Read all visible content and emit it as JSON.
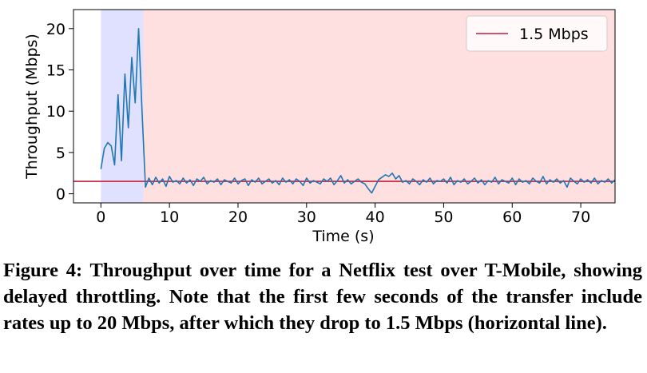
{
  "chart_data": {
    "type": "line",
    "xlabel": "Time (s)",
    "ylabel": "Throughput (Mbps)",
    "xlim": [
      -4,
      75
    ],
    "ylim": [
      -1.1,
      22.3
    ],
    "xticks": [
      0,
      10,
      20,
      30,
      40,
      50,
      60,
      70
    ],
    "yticks": [
      0,
      5,
      10,
      15,
      20
    ],
    "grid": false,
    "legend": "upper right",
    "shaded_regions": [
      {
        "xlim": [
          0,
          6.2
        ],
        "color": "#e0e0ff"
      },
      {
        "xlim": [
          6.2,
          75
        ],
        "color": "#ffe0e0"
      }
    ],
    "hlines": [
      {
        "name": "1.5 Mbps",
        "value": 1.5,
        "color": "#c41e3a"
      }
    ],
    "x": [
      0,
      0.5,
      1,
      1.5,
      2,
      2.5,
      3,
      3.5,
      4,
      4.5,
      5,
      5.5,
      6,
      6.5,
      7,
      7.5,
      8,
      8.5,
      9,
      9.5,
      10,
      10.5,
      11,
      11.5,
      12,
      12.5,
      13,
      13.5,
      14,
      14.5,
      15,
      15.5,
      16,
      16.5,
      17,
      17.5,
      18,
      18.5,
      19,
      19.5,
      20,
      20.5,
      21,
      21.5,
      22,
      22.5,
      23,
      23.5,
      24,
      24.5,
      25,
      25.5,
      26,
      26.5,
      27,
      27.5,
      28,
      28.5,
      29,
      29.5,
      30,
      30.5,
      31,
      31.5,
      32,
      32.5,
      33,
      33.5,
      34,
      34.5,
      35,
      35.5,
      36,
      36.5,
      37,
      37.5,
      38,
      38.5,
      39,
      39.5,
      40,
      40.5,
      41,
      41.5,
      42,
      42.5,
      43,
      43.5,
      44,
      44.5,
      45,
      45.5,
      46,
      46.5,
      47,
      47.5,
      48,
      48.5,
      49,
      49.5,
      50,
      50.5,
      51,
      51.5,
      52,
      52.5,
      53,
      53.5,
      54,
      54.5,
      55,
      55.5,
      56,
      56.5,
      57,
      57.5,
      58,
      58.5,
      59,
      59.5,
      60,
      60.5,
      61,
      61.5,
      62,
      62.5,
      63,
      63.5,
      64,
      64.5,
      65,
      65.5,
      66,
      66.5,
      67,
      67.5,
      68,
      68.5,
      69,
      69.5,
      70,
      70.5,
      71,
      71.5,
      72,
      72.5,
      73,
      73.5,
      74,
      74.5,
      75
    ],
    "series": [
      {
        "name": "Throughput",
        "color": "#1f77b4",
        "values": [
          3,
          5.5,
          6.2,
          5.8,
          3.5,
          12,
          4,
          14.5,
          8,
          16.5,
          11,
          20,
          10,
          0.8,
          1.9,
          1.1,
          2.0,
          1.3,
          1.8,
          0.9,
          2.1,
          1.4,
          1.6,
          1.2,
          1.9,
          1.3,
          1.7,
          1.0,
          1.8,
          1.5,
          2.0,
          1.2,
          1.6,
          1.4,
          1.8,
          1.1,
          1.7,
          1.5,
          1.3,
          1.9,
          1.2,
          1.6,
          1.8,
          1.0,
          1.7,
          1.4,
          1.9,
          1.2,
          1.5,
          1.8,
          1.3,
          1.6,
          1.1,
          1.9,
          1.4,
          1.7,
          1.2,
          1.8,
          1.5,
          1.0,
          1.9,
          1.3,
          1.6,
          1.4,
          1.2,
          1.8,
          1.5,
          1.9,
          1.1,
          1.6,
          2.2,
          1.3,
          1.7,
          1.2,
          1.5,
          1.8,
          1.4,
          1.2,
          0.6,
          0.1,
          0.9,
          1.7,
          2.0,
          2.3,
          2.1,
          2.5,
          1.8,
          2.2,
          1.4,
          1.6,
          1.2,
          1.8,
          1.5,
          1.1,
          1.7,
          1.4,
          1.9,
          1.2,
          1.6,
          1.5,
          1.8,
          1.3,
          2.0,
          1.1,
          1.6,
          1.4,
          1.8,
          1.2,
          1.5,
          1.9,
          1.3,
          1.7,
          1.1,
          1.6,
          1.4,
          2.0,
          1.2,
          1.7,
          1.5,
          1.3,
          1.9,
          1.1,
          1.8,
          1.4,
          1.6,
          1.2,
          1.9,
          1.5,
          1.3,
          2.1,
          1.2,
          1.7,
          1.4,
          1.8,
          1.3,
          1.6,
          0.8,
          1.9,
          1.5,
          1.2,
          1.8,
          1.4,
          1.7,
          1.3,
          1.9,
          1.2,
          1.6,
          1.4,
          1.8,
          1.3,
          1.7
        ]
      }
    ]
  },
  "caption": "Figure 4: Throughput over time for a Netflix test over T-Mobile, showing delayed throttling. Note that the first few seconds of the transfer include rates up to 20 Mbps, after which they drop to 1.5 Mbps (horizontal line)."
}
